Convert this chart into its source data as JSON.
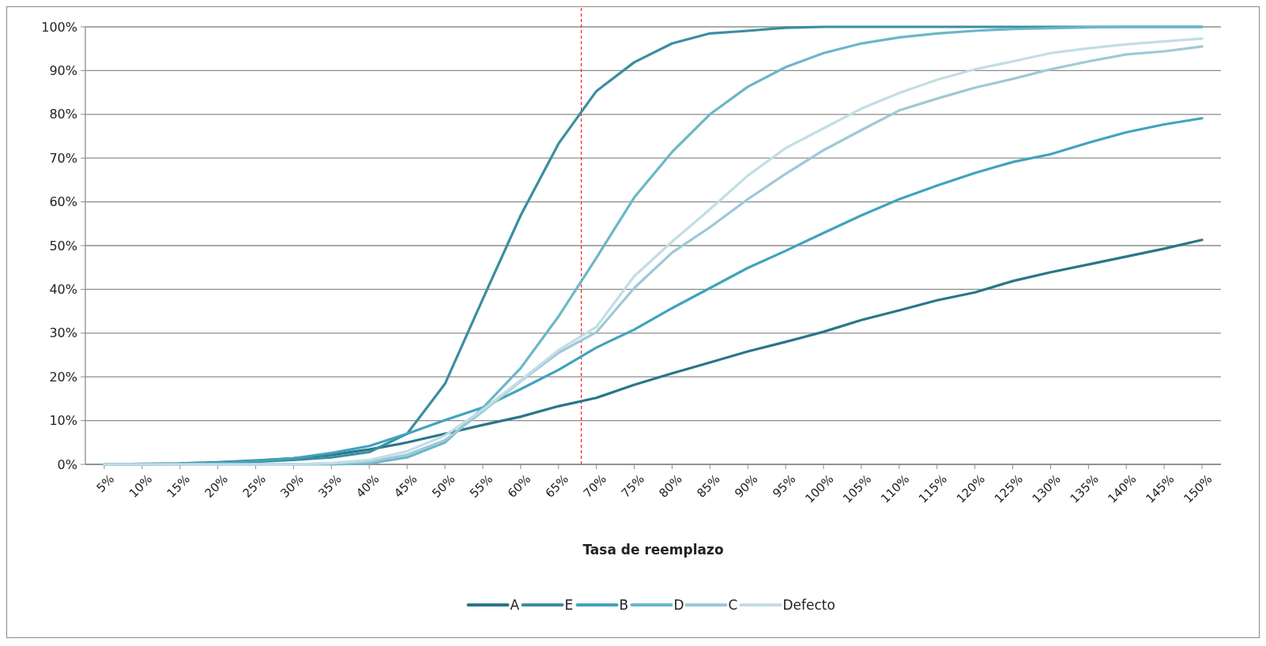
{
  "chart_data": {
    "type": "line",
    "xlabel": "Tasa de reemplazo",
    "x": [
      5,
      10,
      15,
      20,
      25,
      30,
      35,
      40,
      45,
      50,
      55,
      60,
      65,
      70,
      75,
      80,
      85,
      90,
      95,
      100,
      105,
      110,
      115,
      120,
      125,
      130,
      135,
      140,
      145,
      150
    ],
    "xlim": [
      2.5,
      152.5
    ],
    "xticks": [
      {
        "value": 5,
        "label": "5%"
      },
      {
        "value": 10,
        "label": "10%"
      },
      {
        "value": 15,
        "label": "15%"
      },
      {
        "value": 20,
        "label": "20%"
      },
      {
        "value": 25,
        "label": "25%"
      },
      {
        "value": 30,
        "label": "30%"
      },
      {
        "value": 35,
        "label": "35%"
      },
      {
        "value": 40,
        "label": "40%"
      },
      {
        "value": 45,
        "label": "45%"
      },
      {
        "value": 50,
        "label": "50%"
      },
      {
        "value": 55,
        "label": "55%"
      },
      {
        "value": 60,
        "label": "60%"
      },
      {
        "value": 65,
        "label": "65%"
      },
      {
        "value": 70,
        "label": "70%"
      },
      {
        "value": 75,
        "label": "75%"
      },
      {
        "value": 80,
        "label": "80%"
      },
      {
        "value": 85,
        "label": "85%"
      },
      {
        "value": 90,
        "label": "90%"
      },
      {
        "value": 95,
        "label": "95%"
      },
      {
        "value": 100,
        "label": "100%"
      },
      {
        "value": 105,
        "label": "105%"
      },
      {
        "value": 110,
        "label": "110%"
      },
      {
        "value": 115,
        "label": "115%"
      },
      {
        "value": 120,
        "label": "120%"
      },
      {
        "value": 125,
        "label": "125%"
      },
      {
        "value": 130,
        "label": "130%"
      },
      {
        "value": 135,
        "label": "135%"
      },
      {
        "value": 140,
        "label": "140%"
      },
      {
        "value": 145,
        "label": "145%"
      },
      {
        "value": 150,
        "label": "150%"
      }
    ],
    "ylim": [
      0,
      100
    ],
    "yticks": [
      {
        "value": 0,
        "label": "0%"
      },
      {
        "value": 10,
        "label": "10%"
      },
      {
        "value": 20,
        "label": "20%"
      },
      {
        "value": 30,
        "label": "30%"
      },
      {
        "value": 40,
        "label": "40%"
      },
      {
        "value": 50,
        "label": "50%"
      },
      {
        "value": 60,
        "label": "60%"
      },
      {
        "value": 70,
        "label": "70%"
      },
      {
        "value": 80,
        "label": "80%"
      },
      {
        "value": 90,
        "label": "90%"
      },
      {
        "value": 100,
        "label": "100%"
      }
    ],
    "grid": "y",
    "legend": "bottom",
    "marker": "none",
    "line_style": "solid",
    "ref_lines": [
      {
        "axis": "x",
        "value": 68,
        "color": "#ff0000",
        "line_style": "dashed"
      }
    ],
    "series": [
      {
        "name": "A",
        "color": "#2b7588",
        "values": [
          0,
          0.1,
          0.2,
          0.5,
          0.9,
          1.4,
          2.2,
          3.4,
          5.0,
          7.0,
          9.0,
          10.9,
          13.3,
          15.2,
          18.2,
          20.8,
          23.3,
          25.8,
          28.0,
          30.3,
          33.0,
          35.2,
          37.5,
          39.3,
          41.9,
          43.9,
          45.7,
          47.5,
          49.3,
          51.3
        ]
      },
      {
        "name": "E",
        "color": "#3a8ea0",
        "values": [
          0,
          0,
          0.1,
          0.3,
          0.6,
          1.0,
          1.6,
          2.8,
          7.0,
          18.4,
          37.8,
          56.9,
          73.3,
          85.3,
          91.9,
          96.2,
          98.5,
          99.1,
          99.8,
          100,
          100,
          100,
          100,
          100,
          100,
          100,
          100,
          100,
          100,
          100
        ]
      },
      {
        "name": "B",
        "color": "#41a3bd",
        "values": [
          0,
          0,
          0.1,
          0.4,
          0.8,
          1.4,
          2.6,
          4.2,
          7.0,
          10.1,
          13.0,
          17.2,
          21.6,
          26.7,
          30.8,
          35.7,
          40.3,
          44.9,
          48.8,
          52.9,
          56.9,
          60.6,
          63.7,
          66.6,
          69.1,
          70.9,
          73.5,
          75.9,
          77.7,
          79.1
        ]
      },
      {
        "name": "D",
        "color": "#6bb6c9",
        "values": [
          0,
          0,
          0,
          0,
          0,
          0,
          0,
          0.2,
          1.6,
          5.0,
          12.9,
          22.0,
          33.8,
          47.2,
          61.0,
          71.4,
          80.0,
          86.3,
          90.8,
          94.0,
          96.2,
          97.6,
          98.5,
          99.1,
          99.5,
          99.7,
          99.9,
          100,
          100,
          100
        ]
      },
      {
        "name": "C",
        "color": "#9dc9d6",
        "values": [
          0,
          0,
          0,
          0,
          0,
          0,
          0.2,
          0.6,
          2.2,
          5.5,
          12.1,
          19.0,
          25.5,
          30.2,
          40.3,
          48.4,
          54.2,
          60.6,
          66.4,
          71.8,
          76.4,
          80.9,
          83.6,
          86.1,
          88.1,
          90.3,
          92.1,
          93.7,
          94.4,
          95.5
        ]
      },
      {
        "name": "Defecto",
        "color": "#c3dde5",
        "values": [
          0,
          0,
          0,
          0,
          0,
          0,
          0.3,
          1.0,
          3.0,
          6.6,
          12.5,
          19.2,
          26.1,
          31.4,
          43.0,
          50.9,
          58.3,
          66.0,
          72.3,
          76.8,
          81.3,
          84.9,
          87.9,
          90.3,
          92.1,
          94.0,
          95.1,
          96.0,
          96.7,
          97.3
        ]
      }
    ]
  }
}
